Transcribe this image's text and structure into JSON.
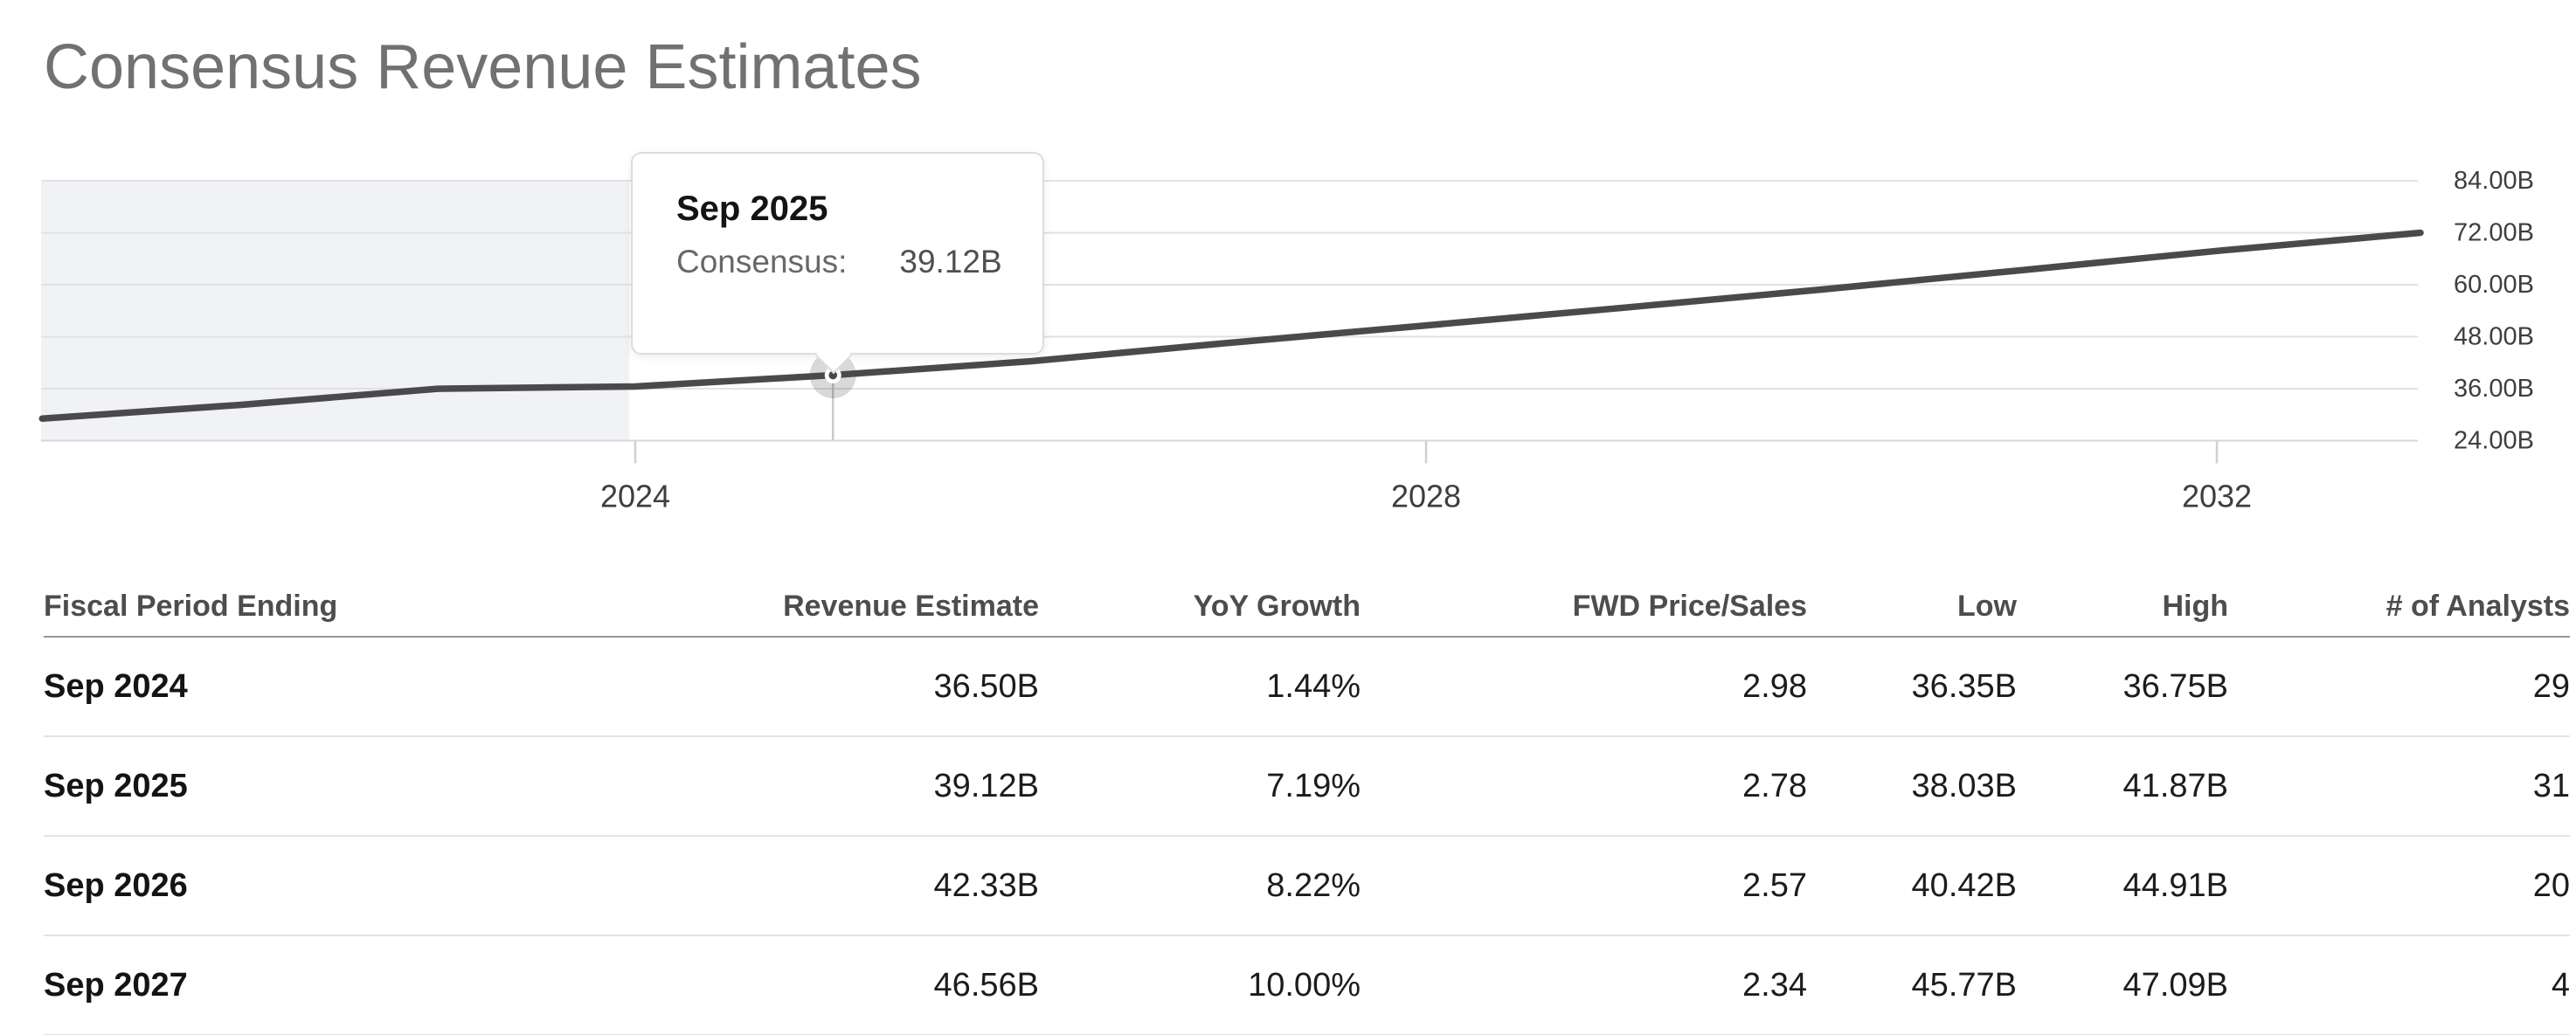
{
  "page": {
    "title": "Consensus Revenue Estimates"
  },
  "tooltip": {
    "period": "Sep 2025",
    "label": "Consensus:",
    "value": "39.12B"
  },
  "chart_data": {
    "type": "line",
    "title": "Consensus Revenue Estimates",
    "xlabel": "",
    "ylabel": "",
    "unit": "B",
    "grid": true,
    "legend": false,
    "x_axis": {
      "range": [
        2021.74,
        2033.78
      ],
      "ticks": [
        {
          "label": "2024",
          "value": 2024.75
        },
        {
          "label": "2028",
          "value": 2028.75
        },
        {
          "label": "2032",
          "value": 2032.75
        }
      ]
    },
    "y_axis": {
      "range": [
        24,
        84
      ],
      "ticks": [
        {
          "label": "84.00B",
          "value": 84
        },
        {
          "label": "72.00B",
          "value": 72
        },
        {
          "label": "60.00B",
          "value": 60
        },
        {
          "label": "48.00B",
          "value": 48
        },
        {
          "label": "36.00B",
          "value": 36
        },
        {
          "label": "24.00B",
          "value": 24
        }
      ]
    },
    "historical_shade_end_x": 2024.72,
    "series": [
      {
        "name": "Consensus",
        "color": "#4a4a4a",
        "points": [
          [
            2021.75,
            29.1
          ],
          [
            2022.75,
            32.25
          ],
          [
            2023.75,
            35.98
          ],
          [
            2024.75,
            36.5
          ],
          [
            2025.75,
            39.12
          ],
          [
            2026.75,
            42.33
          ],
          [
            2027.75,
            46.56
          ],
          [
            2028.75,
            50.6
          ],
          [
            2029.75,
            54.7
          ],
          [
            2030.75,
            58.9
          ],
          [
            2031.75,
            63.3
          ],
          [
            2032.75,
            67.8
          ],
          [
            2033.78,
            72.0
          ]
        ]
      }
    ],
    "highlight_point": {
      "x": 2025.75,
      "value": 39.12,
      "label": "Sep 2025"
    }
  },
  "table": {
    "columns": [
      {
        "label": "Fiscal Period Ending",
        "align": "left"
      },
      {
        "label": "Revenue Estimate",
        "align": "right"
      },
      {
        "label": "YoY Growth",
        "align": "right"
      },
      {
        "label": "FWD Price/Sales",
        "align": "right"
      },
      {
        "label": "Low",
        "align": "right"
      },
      {
        "label": "High",
        "align": "right"
      },
      {
        "label": "# of Analysts",
        "align": "right"
      }
    ],
    "rows": [
      [
        "Sep 2024",
        "36.50B",
        "1.44%",
        "2.98",
        "36.35B",
        "36.75B",
        "29"
      ],
      [
        "Sep 2025",
        "39.12B",
        "7.19%",
        "2.78",
        "38.03B",
        "41.87B",
        "31"
      ],
      [
        "Sep 2026",
        "42.33B",
        "8.22%",
        "2.57",
        "40.42B",
        "44.91B",
        "20"
      ],
      [
        "Sep 2027",
        "46.56B",
        "10.00%",
        "2.34",
        "45.77B",
        "47.09B",
        "4"
      ]
    ]
  }
}
